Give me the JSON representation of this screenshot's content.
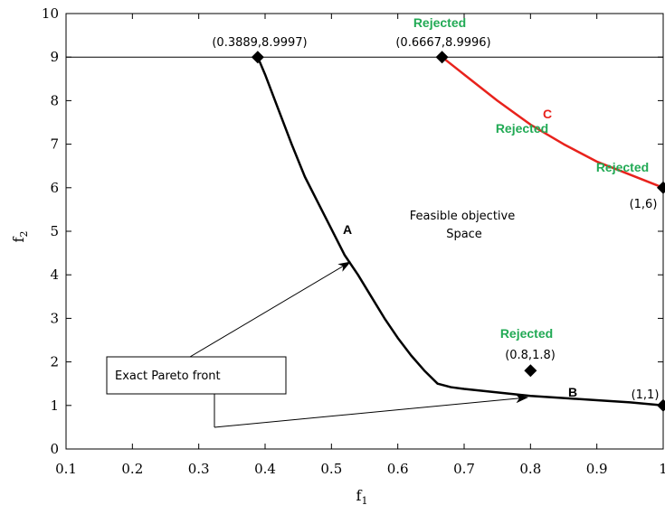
{
  "chart_data": {
    "type": "line",
    "xlabel": "f",
    "xlabel_sub": "1",
    "ylabel": "f",
    "ylabel_sub": "2",
    "xlim": [
      0.1,
      1.0
    ],
    "ylim": [
      0,
      10
    ],
    "x_ticks": [
      "0.1",
      "0.2",
      "0.3",
      "0.4",
      "0.5",
      "0.6",
      "0.7",
      "0.8",
      "0.9",
      "1"
    ],
    "y_ticks": [
      "0",
      "1",
      "2",
      "3",
      "4",
      "5",
      "6",
      "7",
      "8",
      "9",
      "10"
    ],
    "grid": false,
    "reference_line_y": 9,
    "series": [
      {
        "color": "#000000",
        "points": [
          [
            0.3889,
            9.0
          ],
          [
            0.4,
            8.6
          ],
          [
            0.42,
            7.8
          ],
          [
            0.44,
            7.0
          ],
          [
            0.46,
            6.25
          ],
          [
            0.48,
            5.65
          ],
          [
            0.5,
            5.05
          ],
          [
            0.52,
            4.45
          ],
          [
            0.54,
            4.0
          ],
          [
            0.56,
            3.5
          ],
          [
            0.58,
            3.0
          ],
          [
            0.6,
            2.55
          ],
          [
            0.62,
            2.15
          ],
          [
            0.64,
            1.8
          ],
          [
            0.66,
            1.5
          ],
          [
            0.68,
            1.42
          ],
          [
            0.7,
            1.38
          ],
          [
            0.75,
            1.3
          ],
          [
            0.8,
            1.22
          ],
          [
            0.85,
            1.17
          ],
          [
            0.9,
            1.12
          ],
          [
            0.95,
            1.07
          ],
          [
            1.0,
            1.0
          ]
        ]
      },
      {
        "color": "#e8221c",
        "points": [
          [
            0.6667,
            9.0
          ],
          [
            0.7,
            8.6
          ],
          [
            0.75,
            8.0
          ],
          [
            0.8,
            7.45
          ],
          [
            0.85,
            7.0
          ],
          [
            0.9,
            6.6
          ],
          [
            0.95,
            6.3
          ],
          [
            1.0,
            6.0
          ]
        ]
      }
    ],
    "markers": [
      [
        0.3889,
        9.0
      ],
      [
        0.6667,
        9.0
      ],
      [
        1.0,
        6.0
      ],
      [
        0.8,
        1.8
      ],
      [
        1.0,
        1.0
      ]
    ],
    "annotations": {
      "point_top_left": "(0.3889,8.9997)",
      "point_top_mid": "(0.6667,8.9996)",
      "point_right": "(1,6)",
      "point_mid": "(0.8,1.8)",
      "point_bottom_right": "(1,1)",
      "rejected": "Rejected",
      "label_a": "A",
      "label_b": "B",
      "label_c": "C",
      "region_line1": "Feasible objective",
      "region_line2": "Space",
      "box_label": "Exact Pareto front"
    }
  }
}
